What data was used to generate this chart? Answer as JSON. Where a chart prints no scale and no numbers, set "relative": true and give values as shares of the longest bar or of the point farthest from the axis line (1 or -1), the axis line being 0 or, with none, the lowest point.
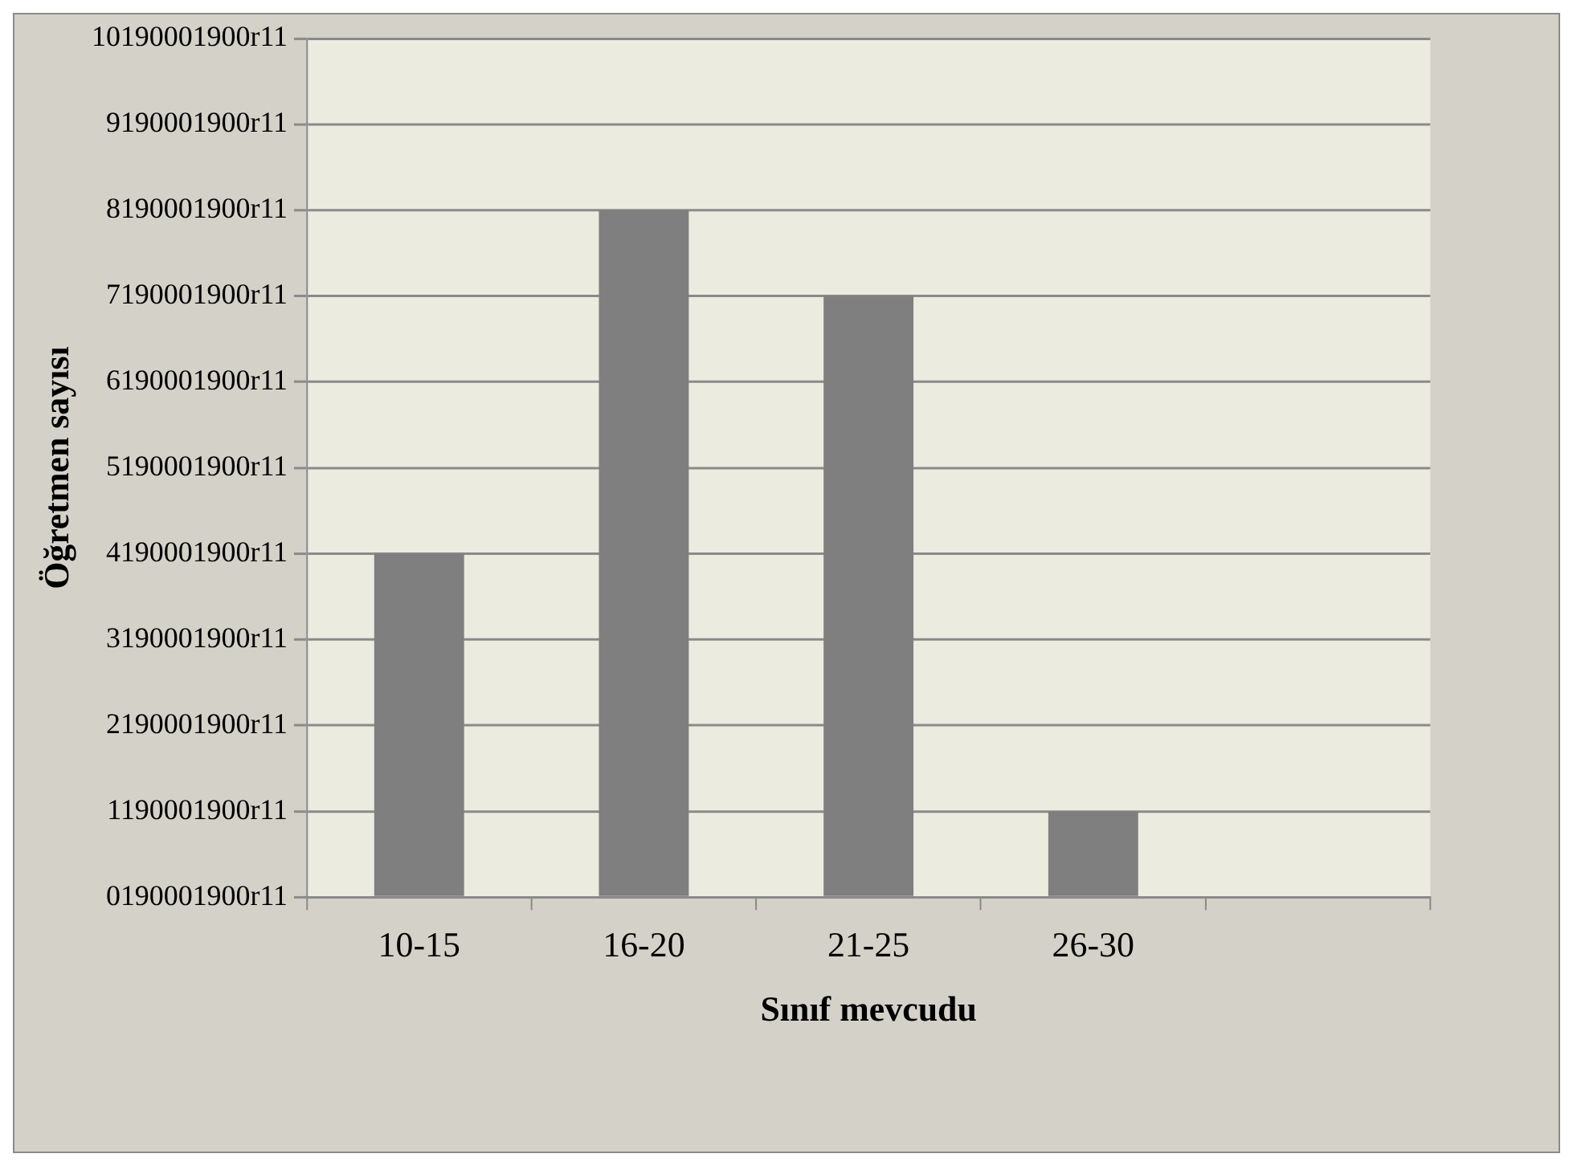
{
  "chart_data": {
    "type": "bar",
    "xlabel": "Sınıf mevcudu",
    "categories": [
      "10-15",
      "16-20",
      "21-25",
      "26-30",
      null
    ],
    "values": [
      0.5,
      1,
      0.875,
      0.125,
      null
    ],
    "relative": true,
    "color": "#7f7f7f",
    "annotations": [
      "Öğretmen sayısı",
      "10190001900r11",
      "9190001900r11",
      "8190001900r11",
      "7190001900r11",
      "6190001900r11",
      "5190001900r11",
      "4190001900r11",
      "3190001900r11",
      "2190001900r11",
      "1190001900r11",
      "0190001900r11"
    ],
    "grid": "y",
    "legend": false
  }
}
